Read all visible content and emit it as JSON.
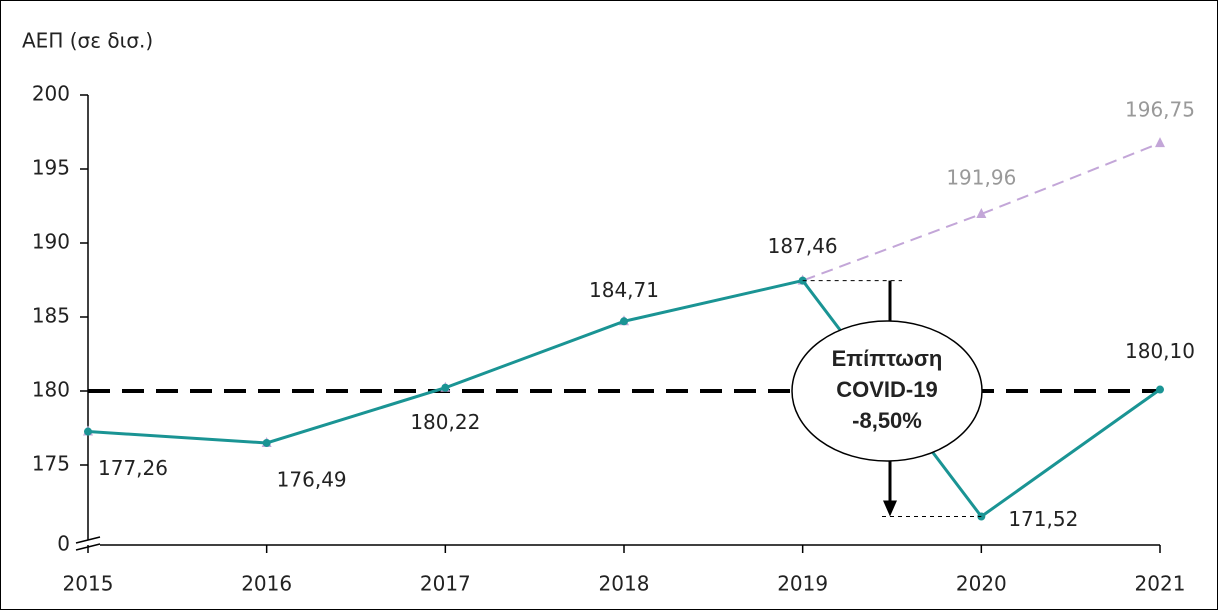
{
  "chart_data": {
    "type": "line",
    "y_label": "ΑΕΠ (σε δισ.)",
    "categories": [
      "2015",
      "2016",
      "2017",
      "2018",
      "2019",
      "2020",
      "2021"
    ],
    "series": [
      {
        "color": "#c3a6d8",
        "dashed": true,
        "marker": "triangle",
        "values": [
          177.26,
          176.49,
          180.22,
          184.71,
          187.46,
          191.96,
          196.75
        ],
        "value_labels": [
          null,
          null,
          null,
          null,
          null,
          "191,96",
          "196,75"
        ],
        "label_color": "#999999"
      },
      {
        "color": "#1a9494",
        "dashed": false,
        "marker": "circle",
        "values": [
          177.26,
          176.49,
          180.22,
          184.71,
          187.46,
          171.52,
          180.1
        ],
        "value_labels": [
          "177,26",
          "176,49",
          "180,22",
          "184,71",
          "187,46",
          "171,52",
          "180,10"
        ],
        "label_color": "#222222"
      }
    ],
    "ylim": [
      170,
      200
    ],
    "yticks": [
      0,
      175,
      180,
      185,
      190,
      195,
      200
    ],
    "axis_break": true,
    "reference_line": 180,
    "annotation": [
      "Επίπτωση",
      "COVID-19",
      "-8,50%"
    ]
  }
}
